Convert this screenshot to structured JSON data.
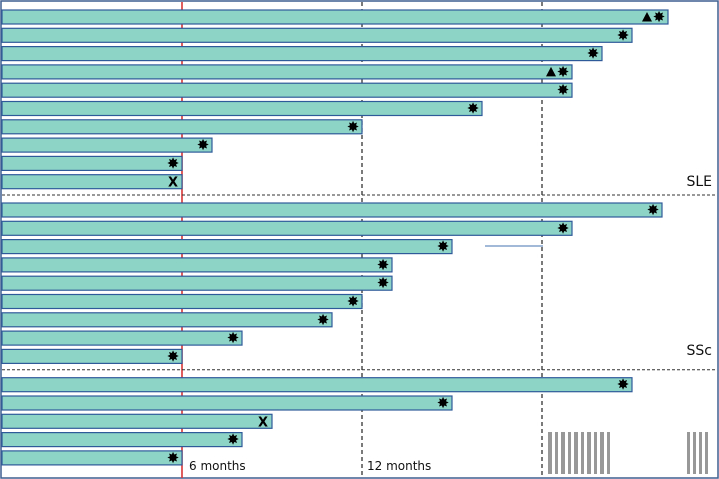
{
  "chart_data": {
    "type": "swimmer",
    "x_unit": "months",
    "xlim": [
      0,
      24
    ],
    "reference_lines": [
      {
        "x": 6,
        "label": "6 months",
        "color": "#d93535"
      },
      {
        "x": 12,
        "label": "12 months"
      },
      {
        "x": 18,
        "label": ""
      }
    ],
    "groups": [
      {
        "label": "SLE",
        "bars": [
          {
            "end": 22.2,
            "markers": [
              "triangle",
              "star"
            ]
          },
          {
            "end": 21.0,
            "markers": [
              "star"
            ]
          },
          {
            "end": 20.0,
            "markers": [
              "star"
            ]
          },
          {
            "end": 19.0,
            "markers": [
              "triangle",
              "star"
            ]
          },
          {
            "end": 19.0,
            "markers": [
              "star"
            ]
          },
          {
            "end": 16.0,
            "markers": [
              "star"
            ]
          },
          {
            "end": 12.0,
            "markers": [
              "star"
            ]
          },
          {
            "end": 7.0,
            "markers": [
              "star"
            ]
          },
          {
            "end": 6.0,
            "markers": [
              "star"
            ]
          },
          {
            "end": 6.0,
            "markers": [
              "x"
            ]
          }
        ]
      },
      {
        "label": "SSc",
        "bars": [
          {
            "end": 22.0,
            "markers": [
              "star"
            ]
          },
          {
            "end": 19.0,
            "markers": [
              "star"
            ]
          },
          {
            "end": 15.0,
            "markers": [
              "star"
            ]
          },
          {
            "end": 13.0,
            "markers": [
              "star"
            ]
          },
          {
            "end": 13.0,
            "markers": [
              "star"
            ]
          },
          {
            "end": 12.0,
            "markers": [
              "star"
            ]
          },
          {
            "end": 11.0,
            "markers": [
              "star"
            ]
          },
          {
            "end": 8.0,
            "markers": [
              "star"
            ]
          },
          {
            "end": 6.0,
            "markers": [
              "star"
            ]
          }
        ]
      },
      {
        "label": "",
        "bars": [
          {
            "end": 21.0,
            "markers": [
              "star"
            ]
          },
          {
            "end": 15.0,
            "markers": [
              "star"
            ]
          },
          {
            "end": 9.0,
            "markers": [
              "x"
            ]
          },
          {
            "end": 8.0,
            "markers": [
              "star"
            ]
          },
          {
            "end": 6.0,
            "markers": [
              "star"
            ]
          }
        ]
      }
    ],
    "colors": {
      "bar_fill": "#8ed4c6",
      "bar_stroke": "#2f5a9a",
      "reference_6_months": "#d93535"
    }
  }
}
